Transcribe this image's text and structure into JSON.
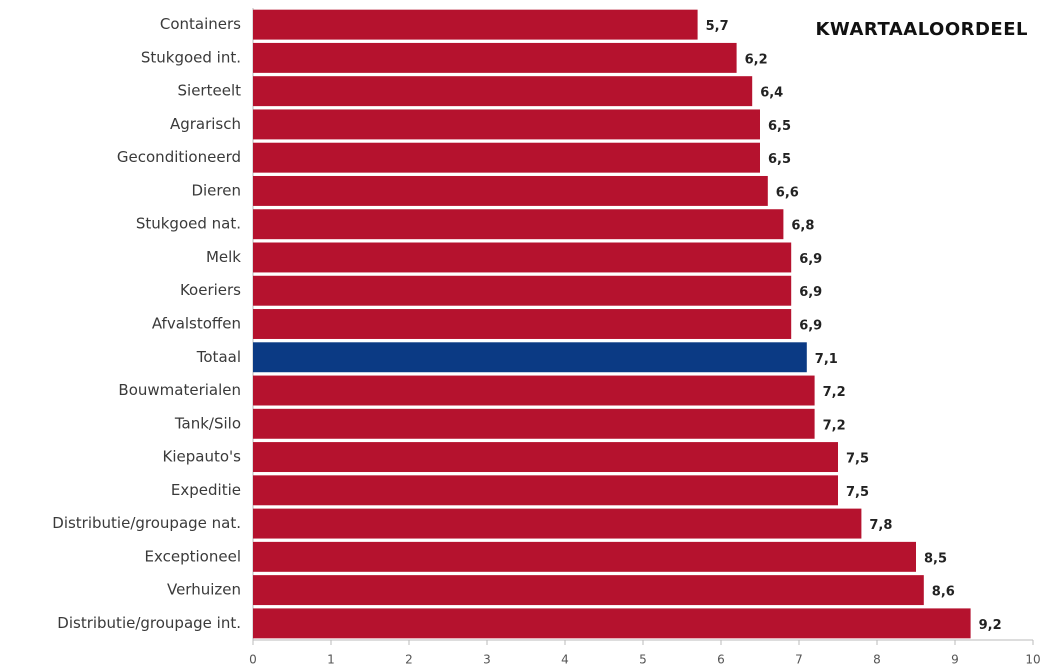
{
  "chart_data": {
    "type": "bar",
    "orientation": "horizontal",
    "title": "KWARTAALOORDEEL",
    "categories": [
      "Containers",
      "Stukgoed int.",
      "Sierteelt",
      "Agrarisch",
      "Geconditioneerd",
      "Dieren",
      "Stukgoed nat.",
      "Melk",
      "Koeriers",
      "Afvalstoffen",
      "Totaal",
      "Bouwmaterialen",
      "Tank/Silo",
      "Kiepauto's",
      "Expeditie",
      "Distributie/groupage nat.",
      "Exceptioneel",
      "Verhuizen",
      "Distributie/groupage int."
    ],
    "values": [
      5.7,
      6.2,
      6.4,
      6.5,
      6.5,
      6.6,
      6.8,
      6.9,
      6.9,
      6.9,
      7.1,
      7.2,
      7.2,
      7.5,
      7.5,
      7.8,
      8.5,
      8.6,
      9.2
    ],
    "value_labels": [
      "5,7",
      "6,2",
      "6,4",
      "6,5",
      "6,5",
      "6,6",
      "6,8",
      "6,9",
      "6,9",
      "6,9",
      "7,1",
      "7,2",
      "7,2",
      "7,5",
      "7,5",
      "7,8",
      "8,5",
      "8,6",
      "9,2"
    ],
    "colors": [
      "#b5122e",
      "#b5122e",
      "#b5122e",
      "#b5122e",
      "#b5122e",
      "#b5122e",
      "#b5122e",
      "#b5122e",
      "#b5122e",
      "#b5122e",
      "#0b3a84",
      "#b5122e",
      "#b5122e",
      "#b5122e",
      "#b5122e",
      "#b5122e",
      "#b5122e",
      "#b5122e",
      "#b5122e"
    ],
    "xlim": [
      0,
      10
    ],
    "xticks": [
      0,
      1,
      2,
      3,
      4,
      5,
      6,
      7,
      8,
      9,
      10
    ],
    "grid": false
  }
}
